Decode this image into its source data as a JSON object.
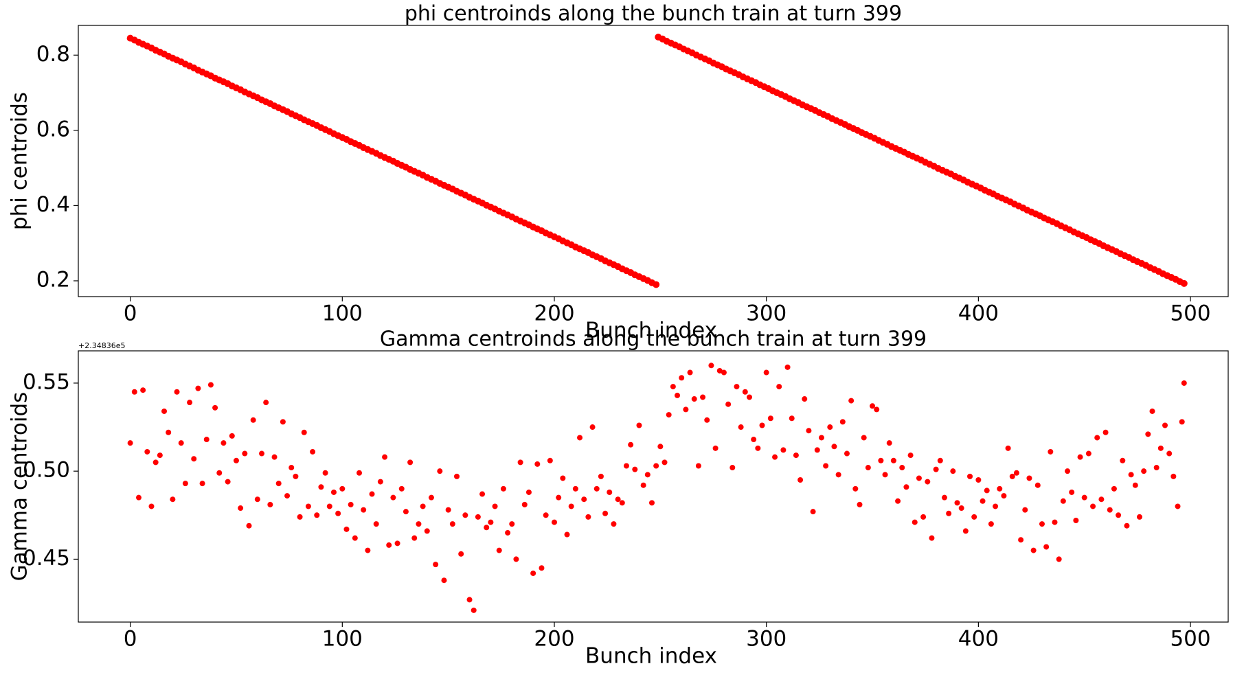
{
  "chart_data": [
    {
      "type": "scatter",
      "title": "phi centroinds along the bunch train at turn 399",
      "x_label": "Bunch index",
      "y_label": "phi centroids",
      "color": "#ff0000",
      "xlim": [
        -24.5,
        517.8
      ],
      "xticks": [
        0,
        100,
        200,
        300,
        400,
        500
      ],
      "ylim": [
        0.158,
        0.879
      ],
      "yticks": [
        0.2,
        0.4,
        0.6,
        0.8
      ],
      "x": [
        0,
        2,
        4,
        6,
        8,
        10,
        12,
        14,
        16,
        18,
        20,
        22,
        24,
        26,
        28,
        30,
        32,
        34,
        36,
        38,
        40,
        42,
        44,
        46,
        48,
        50,
        52,
        54,
        56,
        58,
        60,
        62,
        64,
        66,
        68,
        70,
        72,
        74,
        76,
        78,
        80,
        82,
        84,
        86,
        88,
        90,
        92,
        94,
        96,
        98,
        100,
        102,
        104,
        106,
        108,
        110,
        112,
        114,
        116,
        118,
        120,
        122,
        124,
        126,
        128,
        130,
        132,
        134,
        136,
        138,
        140,
        142,
        144,
        146,
        148,
        150,
        152,
        154,
        156,
        158,
        160,
        162,
        164,
        166,
        168,
        170,
        172,
        174,
        176,
        178,
        180,
        182,
        184,
        186,
        188,
        190,
        192,
        194,
        196,
        198,
        200,
        202,
        204,
        206,
        208,
        210,
        212,
        214,
        216,
        218,
        220,
        222,
        224,
        226,
        228,
        230,
        232,
        234,
        236,
        238,
        240,
        242,
        244,
        246,
        248,
        249,
        251,
        253,
        255,
        257,
        259,
        261,
        263,
        265,
        267,
        269,
        271,
        273,
        275,
        277,
        279,
        281,
        283,
        285,
        287,
        289,
        291,
        293,
        295,
        297,
        299,
        301,
        303,
        305,
        307,
        309,
        311,
        313,
        315,
        317,
        319,
        321,
        323,
        325,
        327,
        329,
        331,
        333,
        335,
        337,
        339,
        341,
        343,
        345,
        347,
        349,
        351,
        353,
        355,
        357,
        359,
        361,
        363,
        365,
        367,
        369,
        371,
        373,
        375,
        377,
        379,
        381,
        383,
        385,
        387,
        389,
        391,
        393,
        395,
        397,
        399,
        401,
        403,
        405,
        407,
        409,
        411,
        413,
        415,
        417,
        419,
        421,
        423,
        425,
        427,
        429,
        431,
        433,
        435,
        437,
        439,
        441,
        443,
        445,
        447,
        449,
        451,
        453,
        455,
        457,
        459,
        461,
        463,
        465,
        467,
        469,
        471,
        473,
        475,
        477,
        479,
        481,
        483,
        485,
        487,
        489,
        491,
        493,
        495,
        497
      ],
      "values": [
        0.845,
        0.84,
        0.834,
        0.829,
        0.824,
        0.819,
        0.813,
        0.808,
        0.803,
        0.797,
        0.792,
        0.787,
        0.782,
        0.776,
        0.771,
        0.766,
        0.76,
        0.755,
        0.75,
        0.745,
        0.739,
        0.734,
        0.729,
        0.724,
        0.718,
        0.713,
        0.708,
        0.702,
        0.697,
        0.692,
        0.687,
        0.681,
        0.676,
        0.671,
        0.665,
        0.66,
        0.655,
        0.65,
        0.644,
        0.639,
        0.634,
        0.628,
        0.623,
        0.618,
        0.613,
        0.607,
        0.602,
        0.597,
        0.591,
        0.586,
        0.581,
        0.576,
        0.57,
        0.565,
        0.56,
        0.554,
        0.549,
        0.544,
        0.539,
        0.533,
        0.528,
        0.523,
        0.518,
        0.512,
        0.507,
        0.502,
        0.496,
        0.491,
        0.486,
        0.481,
        0.475,
        0.47,
        0.465,
        0.459,
        0.454,
        0.449,
        0.444,
        0.438,
        0.433,
        0.428,
        0.422,
        0.417,
        0.412,
        0.407,
        0.401,
        0.396,
        0.391,
        0.385,
        0.38,
        0.375,
        0.37,
        0.364,
        0.359,
        0.354,
        0.349,
        0.343,
        0.338,
        0.333,
        0.327,
        0.322,
        0.317,
        0.312,
        0.306,
        0.301,
        0.296,
        0.29,
        0.285,
        0.28,
        0.275,
        0.269,
        0.264,
        0.259,
        0.253,
        0.248,
        0.243,
        0.238,
        0.232,
        0.227,
        0.222,
        0.216,
        0.211,
        0.206,
        0.201,
        0.195,
        0.19,
        0.848,
        0.843,
        0.837,
        0.832,
        0.827,
        0.822,
        0.816,
        0.811,
        0.806,
        0.8,
        0.795,
        0.79,
        0.785,
        0.779,
        0.774,
        0.769,
        0.763,
        0.758,
        0.753,
        0.748,
        0.742,
        0.737,
        0.732,
        0.727,
        0.721,
        0.716,
        0.711,
        0.705,
        0.7,
        0.695,
        0.69,
        0.684,
        0.679,
        0.674,
        0.668,
        0.663,
        0.658,
        0.653,
        0.647,
        0.642,
        0.637,
        0.631,
        0.626,
        0.621,
        0.616,
        0.61,
        0.605,
        0.6,
        0.594,
        0.589,
        0.584,
        0.579,
        0.573,
        0.568,
        0.563,
        0.557,
        0.552,
        0.547,
        0.542,
        0.536,
        0.531,
        0.526,
        0.521,
        0.515,
        0.51,
        0.505,
        0.499,
        0.494,
        0.489,
        0.484,
        0.478,
        0.473,
        0.468,
        0.462,
        0.457,
        0.452,
        0.447,
        0.441,
        0.436,
        0.431,
        0.425,
        0.42,
        0.415,
        0.41,
        0.404,
        0.399,
        0.394,
        0.388,
        0.383,
        0.378,
        0.373,
        0.367,
        0.362,
        0.357,
        0.352,
        0.346,
        0.341,
        0.336,
        0.33,
        0.325,
        0.32,
        0.315,
        0.309,
        0.304,
        0.299,
        0.293,
        0.288,
        0.283,
        0.278,
        0.272,
        0.267,
        0.262,
        0.256,
        0.251,
        0.246,
        0.241,
        0.235,
        0.23,
        0.225,
        0.219,
        0.214,
        0.209,
        0.204,
        0.198,
        0.193
      ]
    },
    {
      "type": "scatter",
      "title": "Gamma centroinds along the bunch train at turn 399",
      "x_label": "Bunch index",
      "y_label": "Gamma centroids",
      "offset_text": "+2.34836e5",
      "color": "#ff0000",
      "xlim": [
        -24.5,
        517.8
      ],
      "xticks": [
        0,
        100,
        200,
        300,
        400,
        500
      ],
      "ylim": [
        0.4143,
        0.5683
      ],
      "yticks": [
        0.45,
        {
          "value": 0.5,
          "label": "0.50"
        },
        0.55
      ],
      "x": [
        0,
        2,
        4,
        6,
        8,
        10,
        12,
        14,
        16,
        18,
        20,
        22,
        24,
        26,
        28,
        30,
        32,
        34,
        36,
        38,
        40,
        42,
        44,
        46,
        48,
        50,
        52,
        54,
        56,
        58,
        60,
        62,
        64,
        66,
        68,
        70,
        72,
        74,
        76,
        78,
        80,
        82,
        84,
        86,
        88,
        90,
        92,
        94,
        96,
        98,
        100,
        102,
        104,
        106,
        108,
        110,
        112,
        114,
        116,
        118,
        120,
        122,
        124,
        126,
        128,
        130,
        132,
        134,
        136,
        138,
        140,
        142,
        144,
        146,
        148,
        150,
        152,
        154,
        156,
        158,
        160,
        162,
        164,
        166,
        168,
        170,
        172,
        174,
        176,
        178,
        180,
        182,
        184,
        186,
        188,
        190,
        192,
        194,
        196,
        198,
        200,
        202,
        204,
        206,
        208,
        210,
        212,
        214,
        216,
        218,
        220,
        222,
        224,
        226,
        228,
        230,
        232,
        234,
        236,
        238,
        240,
        242,
        244,
        246,
        248,
        250,
        252,
        254,
        256,
        258,
        260,
        262,
        264,
        266,
        268,
        270,
        272,
        274,
        276,
        278,
        280,
        282,
        284,
        286,
        288,
        290,
        292,
        294,
        296,
        298,
        300,
        302,
        304,
        306,
        308,
        310,
        312,
        314,
        316,
        318,
        320,
        322,
        324,
        326,
        328,
        330,
        332,
        334,
        336,
        338,
        340,
        342,
        344,
        346,
        348,
        350,
        352,
        354,
        356,
        358,
        360,
        362,
        364,
        366,
        368,
        370,
        372,
        374,
        376,
        378,
        380,
        382,
        384,
        386,
        388,
        390,
        392,
        394,
        396,
        398,
        400,
        402,
        404,
        406,
        408,
        410,
        412,
        414,
        416,
        418,
        420,
        422,
        424,
        426,
        428,
        430,
        432,
        434,
        436,
        438,
        440,
        442,
        444,
        446,
        448,
        450,
        452,
        454,
        456,
        458,
        460,
        462,
        464,
        466,
        468,
        470,
        472,
        474,
        476,
        478,
        480,
        482,
        484,
        486,
        488,
        490,
        492,
        494,
        496,
        497
      ],
      "values": [
        0.516,
        0.545,
        0.485,
        0.546,
        0.511,
        0.48,
        0.505,
        0.509,
        0.534,
        0.522,
        0.484,
        0.545,
        0.516,
        0.493,
        0.539,
        0.507,
        0.547,
        0.493,
        0.518,
        0.549,
        0.536,
        0.499,
        0.516,
        0.494,
        0.52,
        0.506,
        0.479,
        0.51,
        0.469,
        0.529,
        0.484,
        0.51,
        0.539,
        0.481,
        0.508,
        0.493,
        0.528,
        0.486,
        0.502,
        0.497,
        0.474,
        0.522,
        0.48,
        0.511,
        0.475,
        0.491,
        0.499,
        0.48,
        0.488,
        0.476,
        0.49,
        0.467,
        0.481,
        0.462,
        0.499,
        0.478,
        0.455,
        0.487,
        0.47,
        0.494,
        0.508,
        0.458,
        0.485,
        0.459,
        0.49,
        0.477,
        0.505,
        0.462,
        0.47,
        0.48,
        0.466,
        0.485,
        0.447,
        0.5,
        0.438,
        0.478,
        0.47,
        0.497,
        0.453,
        0.475,
        0.427,
        0.421,
        0.474,
        0.487,
        0.468,
        0.471,
        0.48,
        0.455,
        0.49,
        0.465,
        0.47,
        0.45,
        0.505,
        0.481,
        0.488,
        0.442,
        0.504,
        0.445,
        0.475,
        0.506,
        0.471,
        0.485,
        0.496,
        0.464,
        0.48,
        0.49,
        0.519,
        0.484,
        0.474,
        0.525,
        0.49,
        0.497,
        0.476,
        0.488,
        0.47,
        0.484,
        0.482,
        0.503,
        0.515,
        0.501,
        0.526,
        0.492,
        0.498,
        0.482,
        0.503,
        0.514,
        0.505,
        0.532,
        0.548,
        0.543,
        0.553,
        0.535,
        0.556,
        0.541,
        0.503,
        0.542,
        0.529,
        0.56,
        0.513,
        0.557,
        0.556,
        0.538,
        0.502,
        0.548,
        0.525,
        0.545,
        0.542,
        0.518,
        0.513,
        0.526,
        0.556,
        0.53,
        0.508,
        0.548,
        0.512,
        0.559,
        0.53,
        0.509,
        0.495,
        0.541,
        0.523,
        0.477,
        0.512,
        0.519,
        0.503,
        0.525,
        0.514,
        0.498,
        0.528,
        0.51,
        0.54,
        0.49,
        0.481,
        0.519,
        0.502,
        0.537,
        0.535,
        0.506,
        0.498,
        0.516,
        0.506,
        0.483,
        0.502,
        0.491,
        0.509,
        0.471,
        0.496,
        0.474,
        0.494,
        0.462,
        0.501,
        0.506,
        0.485,
        0.476,
        0.5,
        0.482,
        0.479,
        0.466,
        0.497,
        0.474,
        0.495,
        0.483,
        0.489,
        0.47,
        0.48,
        0.49,
        0.486,
        0.513,
        0.497,
        0.499,
        0.461,
        0.478,
        0.496,
        0.455,
        0.492,
        0.47,
        0.457,
        0.511,
        0.471,
        0.45,
        0.483,
        0.5,
        0.488,
        0.472,
        0.508,
        0.485,
        0.51,
        0.48,
        0.519,
        0.484,
        0.522,
        0.478,
        0.49,
        0.475,
        0.506,
        0.469,
        0.498,
        0.492,
        0.474,
        0.5,
        0.521,
        0.534,
        0.502,
        0.513,
        0.526,
        0.51,
        0.497,
        0.48,
        0.528,
        0.55
      ]
    }
  ]
}
